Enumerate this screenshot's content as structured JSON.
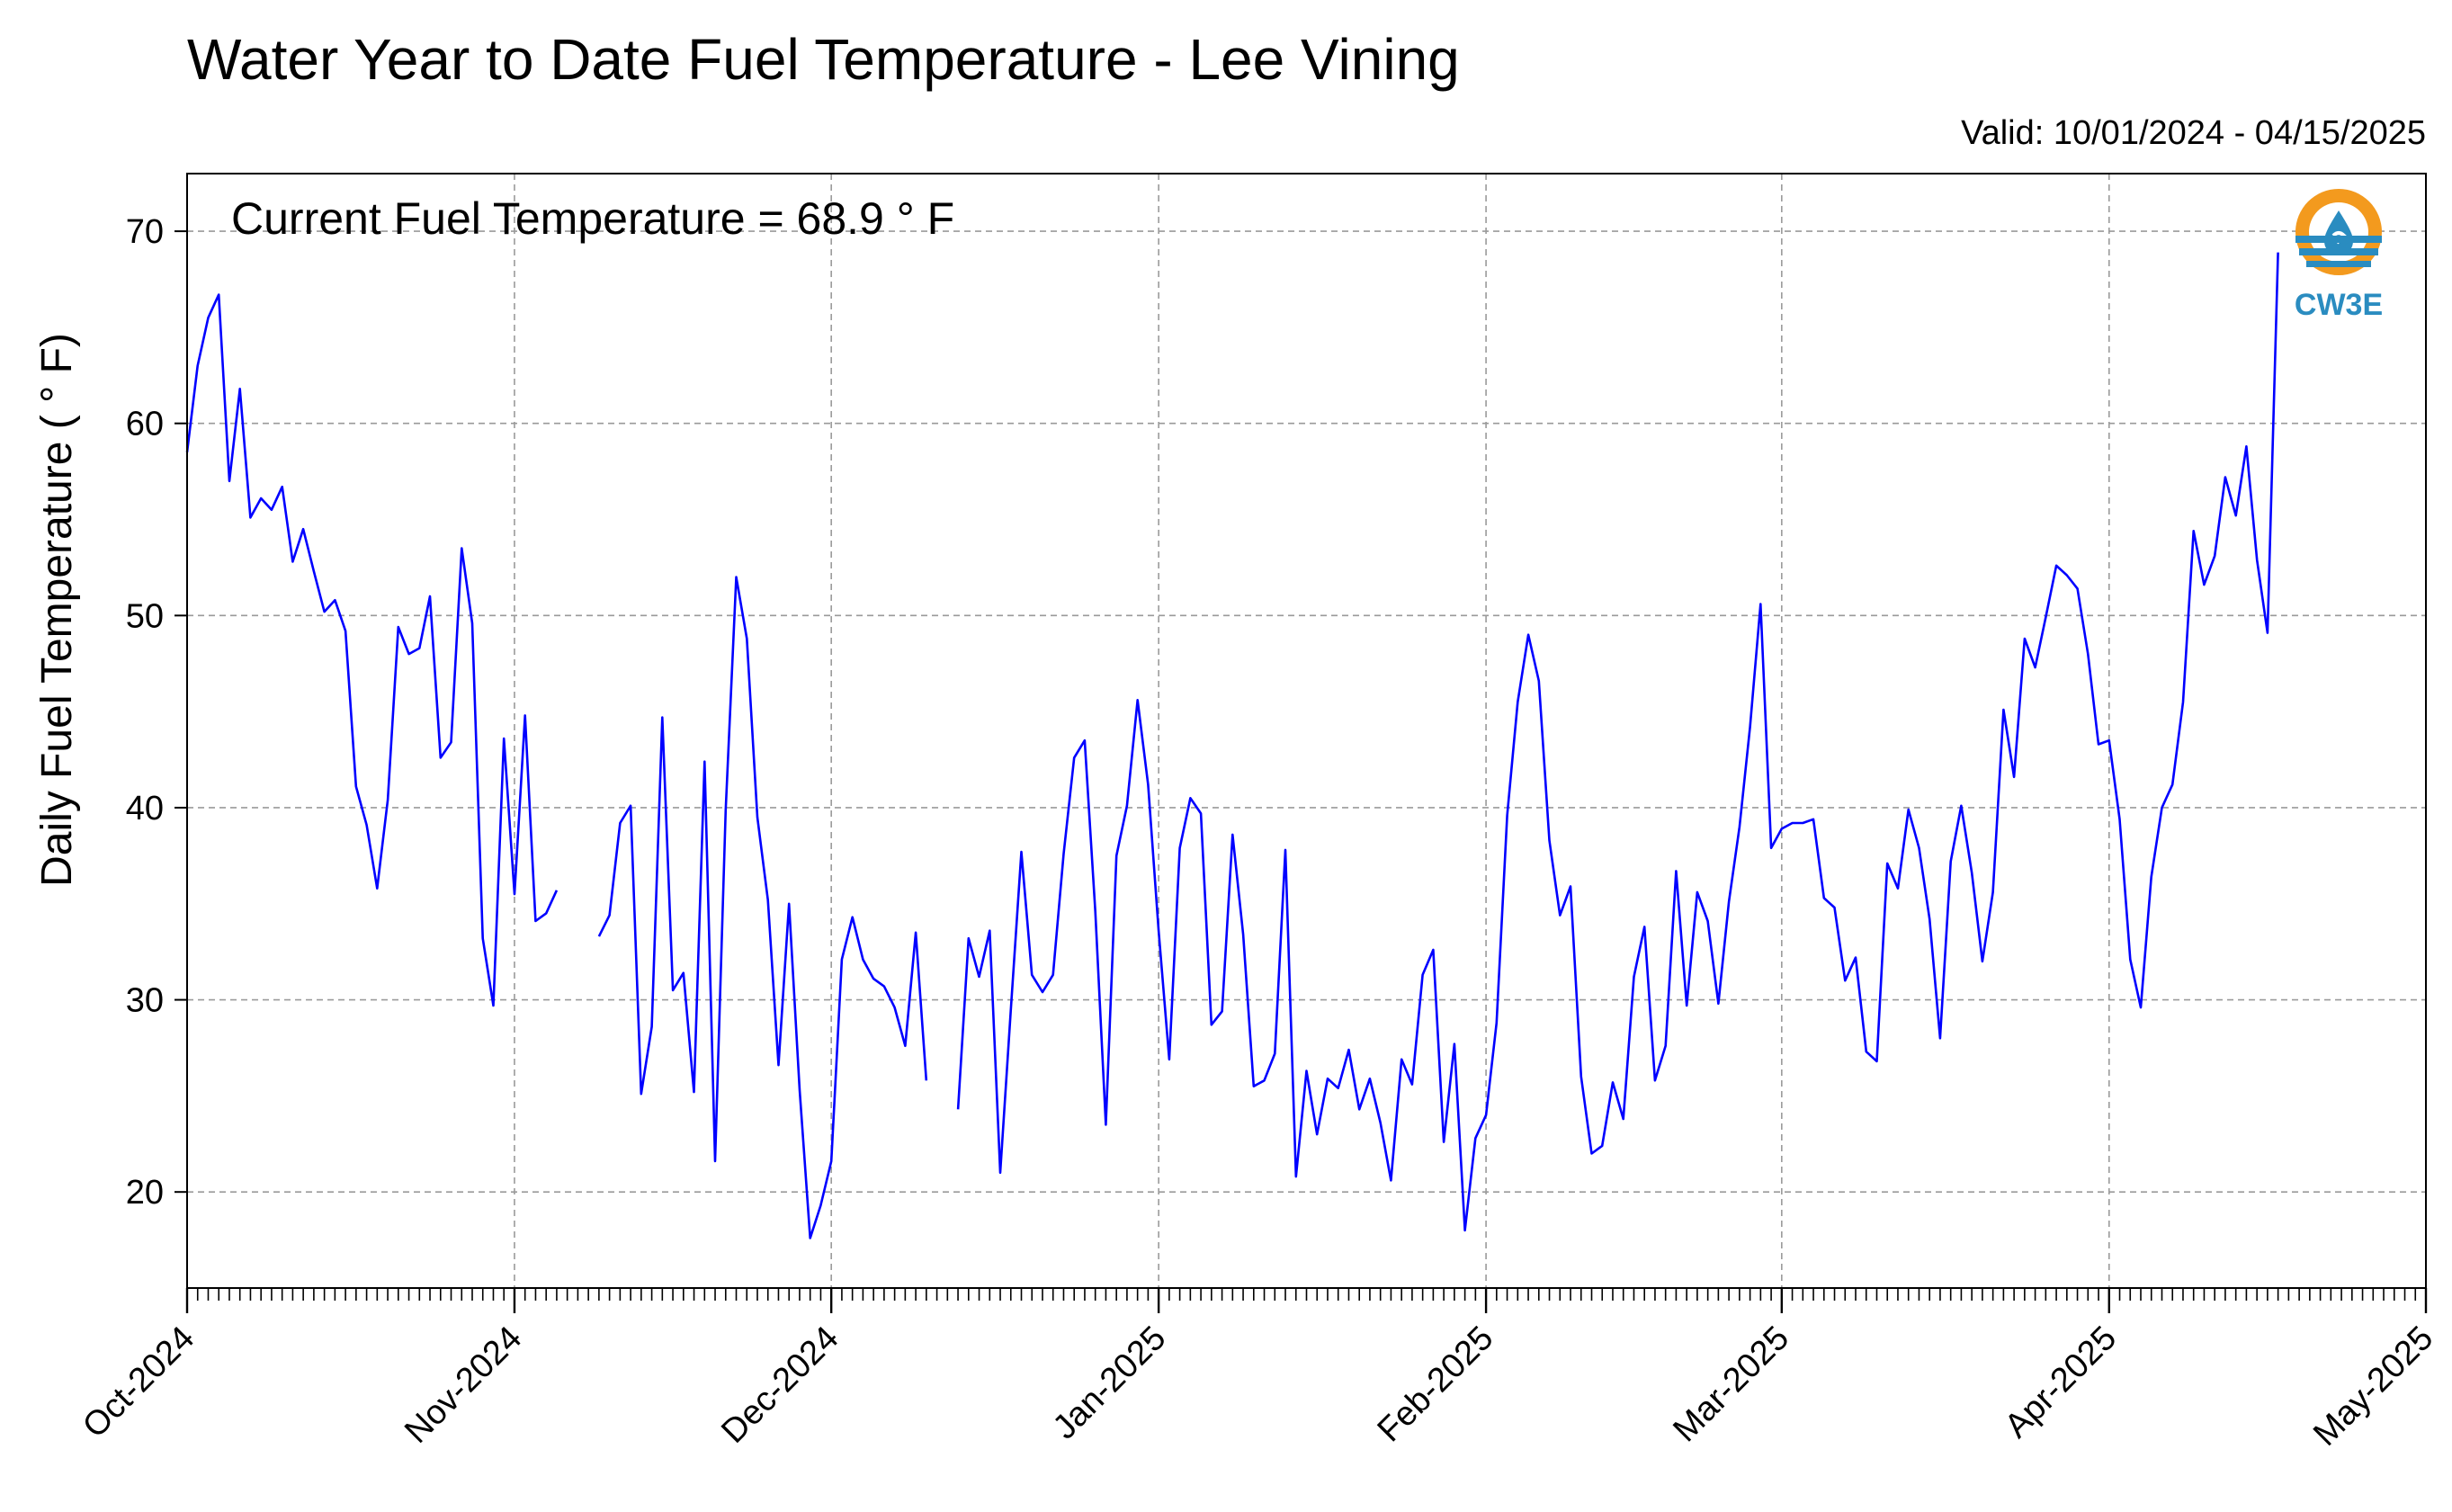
{
  "chart_data": {
    "type": "line",
    "title": "Water Year to Date Fuel Temperature - Lee Vining",
    "subtitle": "Valid: 10/01/2024 - 04/15/2025",
    "ylabel": "Daily Fuel Temperature ( ° F)",
    "xlabel": "",
    "annotation": "Current Fuel Temperature = 68.9  ° F",
    "ylim": [
      15,
      73
    ],
    "xlim": [
      "2024-10-01",
      "2025-05-01"
    ],
    "yticks": [
      20,
      30,
      40,
      50,
      60,
      70
    ],
    "xticks": [
      {
        "date": "2024-10-01",
        "label": "Oct-2024"
      },
      {
        "date": "2024-11-01",
        "label": "Nov-2024"
      },
      {
        "date": "2024-12-01",
        "label": "Dec-2024"
      },
      {
        "date": "2025-01-01",
        "label": "Jan-2025"
      },
      {
        "date": "2025-02-01",
        "label": "Feb-2025"
      },
      {
        "date": "2025-03-01",
        "label": "Mar-2025"
      },
      {
        "date": "2025-04-01",
        "label": "Apr-2025"
      },
      {
        "date": "2025-05-01",
        "label": "May-2025"
      }
    ],
    "grid": true,
    "line_color": "#0000ff",
    "series": [
      {
        "start_date": "2024-10-01",
        "values": [
          58.5,
          63.0,
          65.5,
          66.7,
          57.0,
          61.8,
          55.1,
          56.1,
          55.5,
          56.7,
          52.8,
          54.5,
          52.3,
          50.2,
          50.8,
          49.2,
          41.1,
          39.1,
          35.8,
          40.4,
          49.4,
          48.0,
          48.3,
          51.0,
          42.6,
          43.4,
          53.5,
          49.6,
          33.2,
          29.7,
          43.6,
          35.5,
          44.8,
          34.1,
          34.5,
          35.7,
          null,
          null,
          null,
          33.3,
          34.4,
          39.2,
          40.1,
          25.1,
          28.6,
          44.7,
          30.5,
          31.4,
          25.2,
          42.4,
          21.6,
          39.9,
          52.0,
          48.8,
          39.5,
          35.2,
          26.6,
          35.0,
          25.3,
          17.6,
          19.3,
          21.6,
          32.1,
          34.3,
          32.1,
          31.1,
          30.7,
          29.6,
          27.6,
          33.5,
          25.8,
          null,
          null,
          24.3,
          33.2,
          31.2,
          33.6,
          21.0,
          29.5,
          37.7,
          31.3,
          30.4,
          31.3,
          37.6,
          42.6,
          43.5,
          34.6,
          23.5,
          37.5,
          40.1,
          45.6,
          41.2,
          33.6,
          26.9,
          37.9,
          40.5,
          39.7,
          28.7,
          29.4,
          38.6,
          33.4,
          25.5,
          25.8,
          27.2,
          37.8,
          20.8,
          26.3,
          23.0,
          25.9,
          25.4,
          27.4,
          24.3,
          25.9,
          23.6,
          20.6,
          26.9,
          25.6,
          31.3,
          32.6,
          22.6,
          27.7,
          18.0,
          22.8,
          24.0,
          28.8,
          39.6,
          45.5,
          49.0,
          46.6,
          38.3,
          34.4,
          35.9,
          26.0,
          22.0,
          22.4,
          25.7,
          23.8,
          31.2,
          33.8,
          25.8,
          27.6,
          36.7,
          29.7,
          35.6,
          34.1,
          29.8,
          35.1,
          39.0,
          44.2,
          50.6,
          37.9,
          38.9,
          39.2,
          39.2,
          39.4,
          35.3,
          34.8,
          31.0,
          32.2,
          27.3,
          26.8,
          37.1,
          35.8,
          39.9,
          37.9,
          34.2,
          28.0,
          37.2,
          40.1,
          36.6,
          32.0,
          35.6,
          45.1,
          41.6,
          48.8,
          47.3,
          49.9,
          52.6,
          52.1,
          51.4,
          48.0,
          43.3,
          43.5,
          39.4,
          32.1,
          29.6,
          36.4,
          40.0,
          41.2,
          45.5,
          54.4,
          51.6,
          53.1,
          57.2,
          55.2,
          58.8,
          52.9,
          49.1,
          68.9
        ]
      }
    ]
  },
  "logo": {
    "text": "CW3E",
    "colors": {
      "orange": "#f39a1e",
      "blue": "#2a8cc0"
    }
  }
}
